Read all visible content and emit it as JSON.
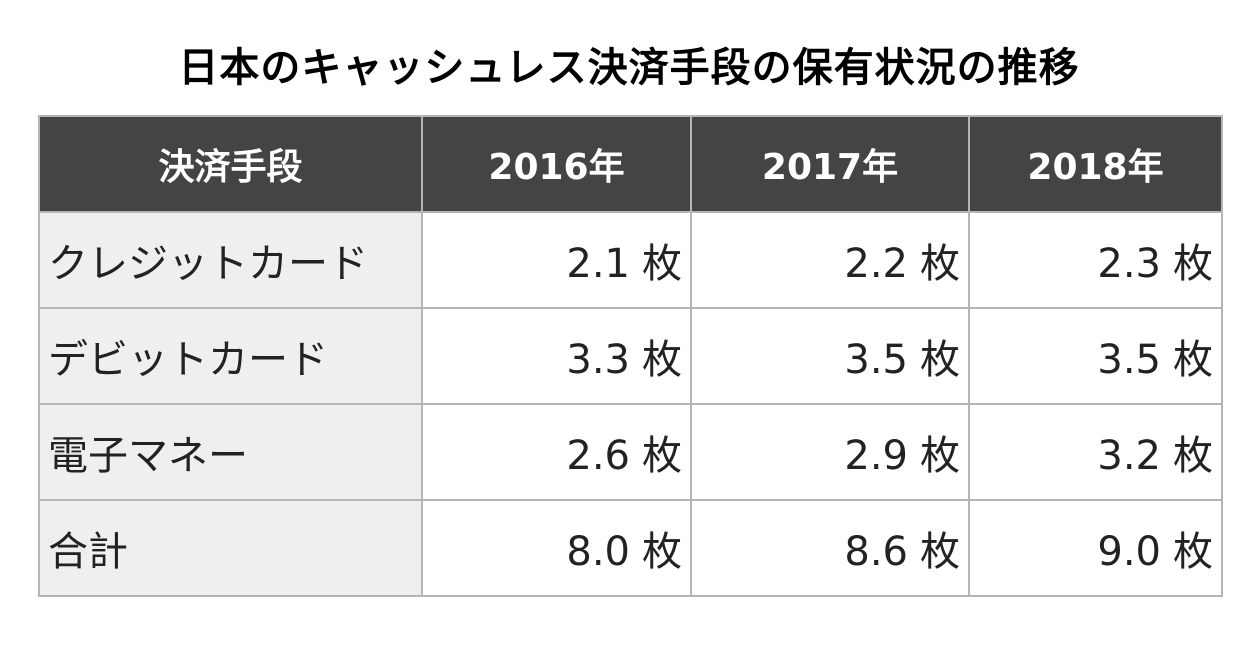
{
  "title": "日本のキャッシュレス決済手段の保有状況の推移",
  "colors": {
    "header_bg": "#444444",
    "header_text": "#ffffff",
    "label_cell_bg": "#efefef",
    "value_cell_bg": "#ffffff",
    "border": "#b5b5b5"
  },
  "chart_data": {
    "type": "table",
    "title": "日本のキャッシュレス決済手段の保有状況の推移",
    "columns": [
      "決済手段",
      "2016年",
      "2017年",
      "2018年"
    ],
    "unit": "枚",
    "rows": [
      {
        "label": "クレジットカード",
        "values": [
          "2.1",
          "2.2",
          "2.3"
        ]
      },
      {
        "label": "デビットカード",
        "values": [
          "3.3",
          "3.5",
          "3.5"
        ]
      },
      {
        "label": "電子マネー",
        "values": [
          "2.6",
          "2.9",
          "3.2"
        ]
      },
      {
        "label": "合計",
        "values": [
          "8.0",
          "8.6",
          "9.0"
        ]
      }
    ]
  }
}
